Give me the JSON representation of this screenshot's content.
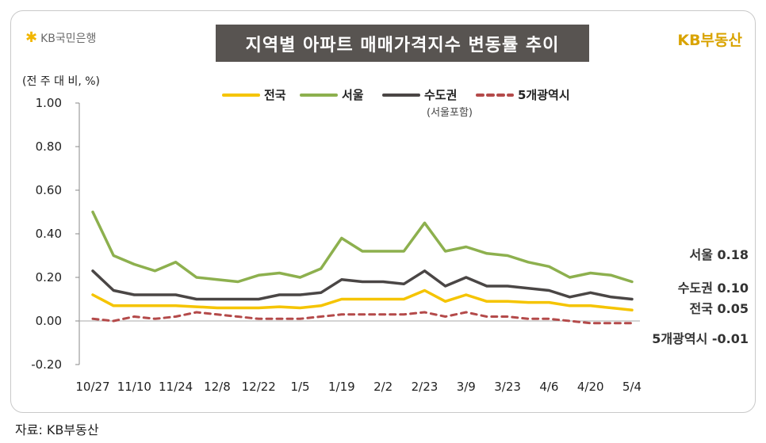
{
  "header": {
    "bank_logo_text": "KB국민은행",
    "title": "지역별 아파트 매매가격지수 변동률 추이",
    "brand": "KB부동산",
    "unit": "(전 주 대 비, %)"
  },
  "footer": {
    "source": "자료: KB부동산"
  },
  "colors": {
    "national": "#f5c400",
    "seoul": "#8db04e",
    "capital": "#4a4645",
    "metro5": "#b44a4a"
  },
  "chart_data": {
    "type": "line",
    "title": "지역별 아파트 매매가격지수 변동률 추이",
    "ylabel": "(전 주 대 비, %)",
    "xlabel": "",
    "ylim": [
      -0.2,
      1.0
    ],
    "yticks": [
      "1.00",
      "0.80",
      "0.60",
      "0.40",
      "0.20",
      "0.00",
      "-0.20"
    ],
    "ytick_values": [
      1.0,
      0.8,
      0.6,
      0.4,
      0.2,
      0.0,
      -0.2
    ],
    "x": [
      "10/27",
      "11/3",
      "11/10",
      "11/17",
      "11/24",
      "12/1",
      "12/8",
      "12/15",
      "12/22",
      "12/29",
      "1/5",
      "1/12",
      "1/19",
      "1/26",
      "2/2",
      "2/9",
      "2/23",
      "3/2",
      "3/9",
      "3/16",
      "3/23",
      "3/30",
      "4/6",
      "4/13",
      "4/20",
      "4/27",
      "5/4"
    ],
    "xtick_labels": [
      "10/27",
      "11/10",
      "11/24",
      "12/8",
      "12/22",
      "1/5",
      "1/19",
      "2/2",
      "2/23",
      "3/9",
      "3/23",
      "4/6",
      "4/20",
      "5/4"
    ],
    "legend_position": "top",
    "series": [
      {
        "name": "전국",
        "key": "national",
        "style": "solid",
        "values": [
          0.12,
          0.07,
          0.07,
          0.07,
          0.07,
          0.065,
          0.06,
          0.06,
          0.06,
          0.065,
          0.06,
          0.07,
          0.1,
          0.1,
          0.1,
          0.1,
          0.14,
          0.09,
          0.12,
          0.09,
          0.09,
          0.085,
          0.085,
          0.07,
          0.07,
          0.06,
          0.05
        ]
      },
      {
        "name": "서울",
        "key": "seoul",
        "style": "solid",
        "values": [
          0.5,
          0.3,
          0.26,
          0.23,
          0.27,
          0.2,
          0.19,
          0.18,
          0.21,
          0.22,
          0.2,
          0.24,
          0.38,
          0.32,
          0.32,
          0.32,
          0.45,
          0.32,
          0.34,
          0.31,
          0.3,
          0.27,
          0.25,
          0.2,
          0.22,
          0.21,
          0.18
        ]
      },
      {
        "name": "수도권",
        "sub": "(서울포함)",
        "key": "capital",
        "style": "solid",
        "values": [
          0.23,
          0.14,
          0.12,
          0.12,
          0.12,
          0.1,
          0.1,
          0.1,
          0.1,
          0.12,
          0.12,
          0.13,
          0.19,
          0.18,
          0.18,
          0.17,
          0.23,
          0.16,
          0.2,
          0.16,
          0.16,
          0.15,
          0.14,
          0.11,
          0.13,
          0.11,
          0.1
        ]
      },
      {
        "name": "5개광역시",
        "key": "metro5",
        "style": "dashed",
        "values": [
          0.01,
          0.0,
          0.02,
          0.01,
          0.02,
          0.04,
          0.03,
          0.02,
          0.01,
          0.01,
          0.01,
          0.02,
          0.03,
          0.03,
          0.03,
          0.03,
          0.04,
          0.02,
          0.04,
          0.02,
          0.02,
          0.01,
          0.01,
          0.0,
          -0.01,
          -0.01,
          -0.01
        ]
      }
    ],
    "end_labels": [
      {
        "key": "seoul",
        "text": "서울 0.18"
      },
      {
        "key": "capital",
        "text": "수도권 0.10"
      },
      {
        "key": "national",
        "text": "전국 0.05"
      },
      {
        "key": "metro5",
        "text": "5개광역시 -0.01"
      }
    ]
  }
}
